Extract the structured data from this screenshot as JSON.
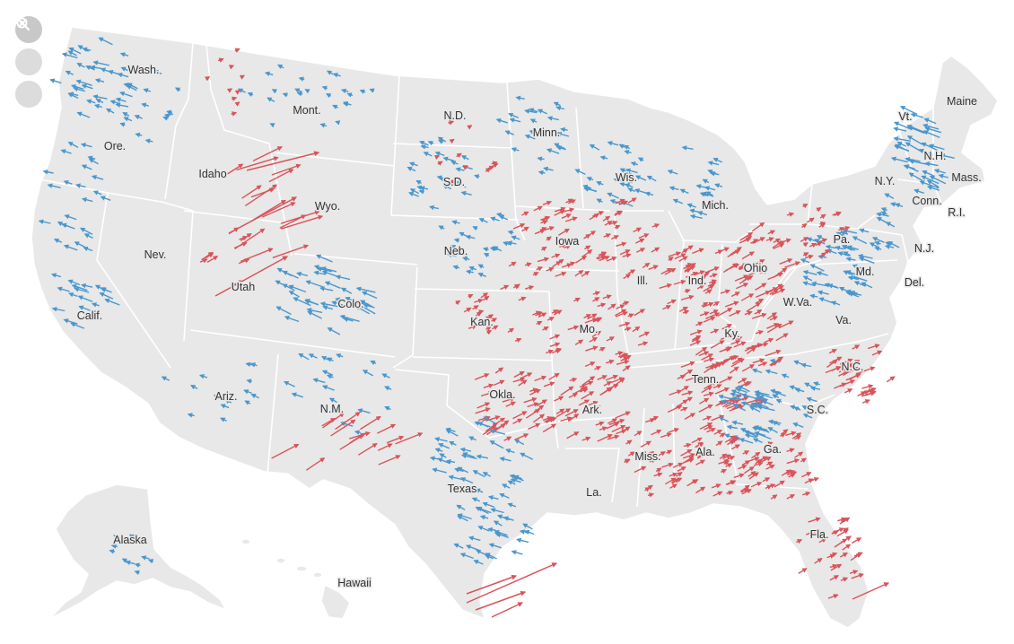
{
  "map": {
    "colors": {
      "land": "#e8e8e8",
      "border": "#ffffff",
      "democratic_shift": "#4a97cd",
      "republican_shift": "#d9545a"
    },
    "controls": [
      {
        "name": "zoom-in-icon",
        "selected": true
      },
      {
        "name": "zoom-out-icon",
        "selected": false
      },
      {
        "name": "close-icon",
        "selected": false
      }
    ],
    "labels": {
      "wash": "Wash.",
      "ore": "Ore.",
      "calif": "Calif.",
      "nev": "Nev.",
      "idaho": "Idaho",
      "mont": "Mont.",
      "wyo": "Wyo.",
      "utah": "Utah",
      "ariz": "Ariz.",
      "colo": "Colo.",
      "nm": "N.M.",
      "nd": "N.D.",
      "sd": "S.D.",
      "neb": "Neb.",
      "kan": "Kan.",
      "okla": "Okla.",
      "texas": "Texas",
      "minn": "Minn.",
      "iowa": "Iowa",
      "mo": "Mo.",
      "ark": "Ark.",
      "la": "La.",
      "wis": "Wis.",
      "ill": "Ill.",
      "mich": "Mich.",
      "ind": "Ind.",
      "ohio": "Ohio",
      "ky": "Ky.",
      "tenn": "Tenn.",
      "miss": "Miss.",
      "ala": "Ala.",
      "ga": "Ga.",
      "fla": "Fla.",
      "sc": "S.C.",
      "nc": "N.C.",
      "va": "Va.",
      "wva": "W.Va.",
      "pa": "Pa.",
      "ny": "N.Y.",
      "md": "Md.",
      "del": "Del.",
      "nj": "N.J.",
      "conn": "Conn.",
      "ri": "R.I.",
      "mass": "Mass.",
      "nh": "N.H.",
      "vt": "Vt.",
      "maine": "Maine",
      "alaska": "Alaska",
      "hawaii": "Hawaii"
    }
  }
}
